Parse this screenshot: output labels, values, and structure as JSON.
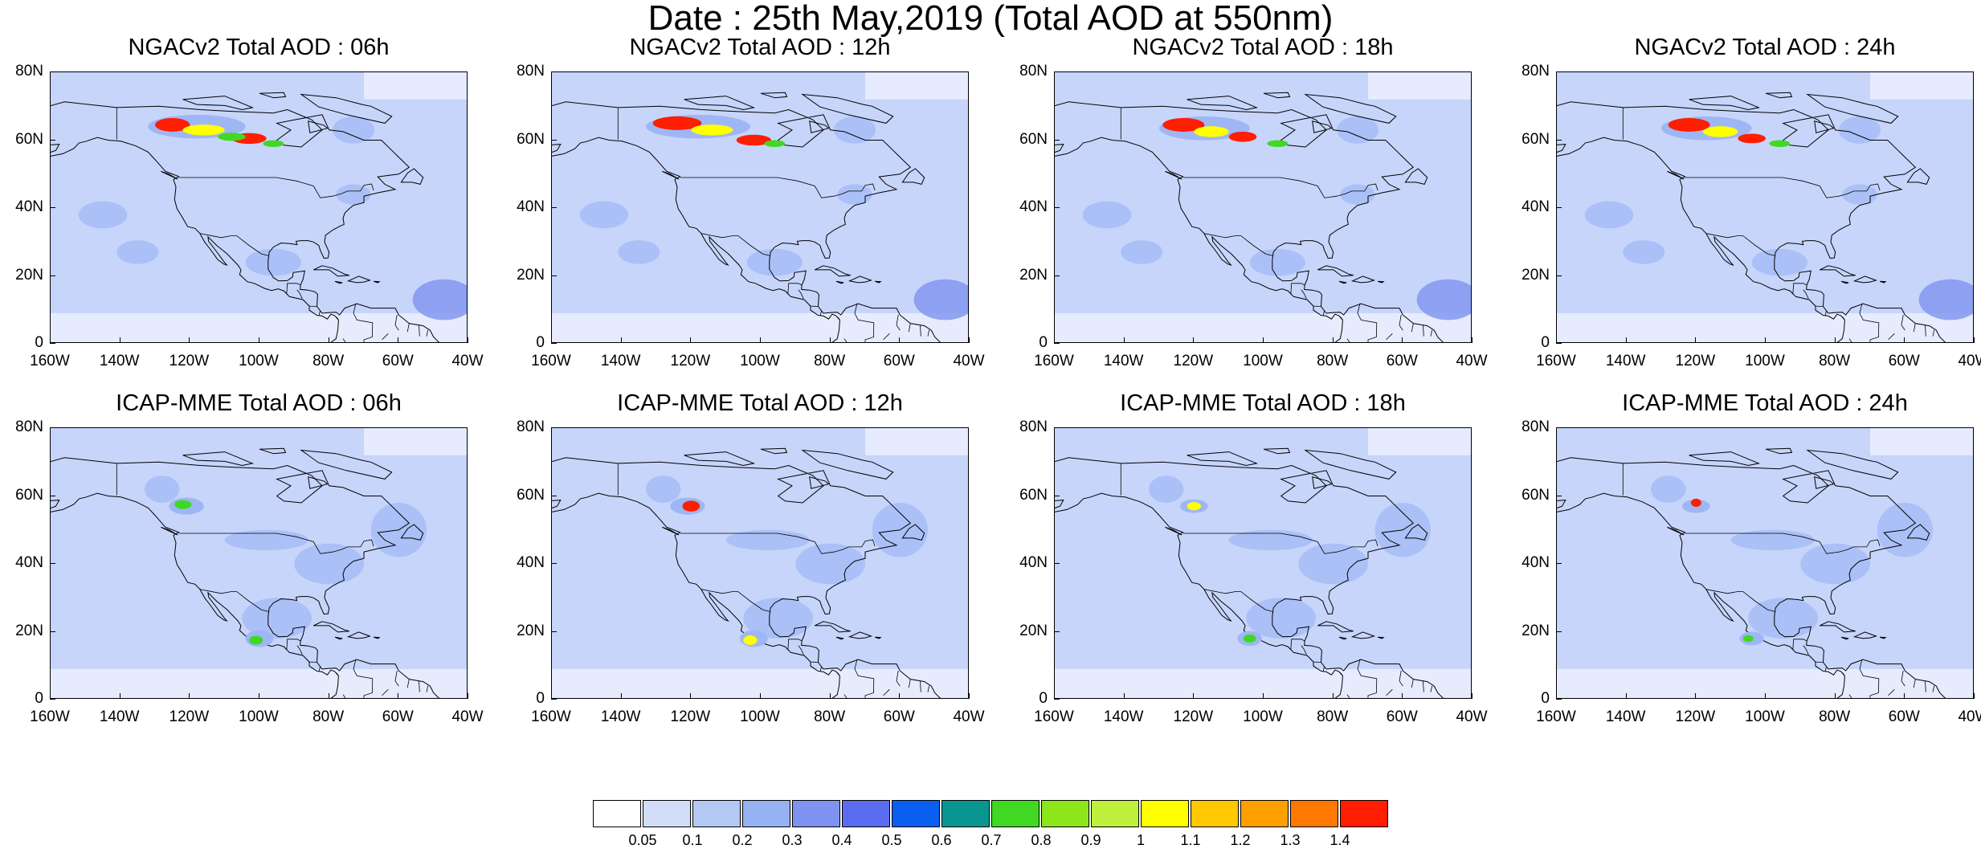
{
  "title": "Date : 25th May,2019 (Total AOD at 550nm)",
  "panels": [
    {
      "title": "NGACv2 Total AOD : 06h",
      "model": "ngac",
      "hour": "06h"
    },
    {
      "title": "NGACv2 Total AOD : 12h",
      "model": "ngac",
      "hour": "12h"
    },
    {
      "title": "NGACv2 Total AOD : 18h",
      "model": "ngac",
      "hour": "18h"
    },
    {
      "title": "NGACv2 Total AOD : 24h",
      "model": "ngac",
      "hour": "24h"
    },
    {
      "title": "ICAP-MME Total AOD : 06h",
      "model": "icap",
      "hour": "06h"
    },
    {
      "title": "ICAP-MME Total AOD : 12h",
      "model": "icap",
      "hour": "12h"
    },
    {
      "title": "ICAP-MME Total AOD : 18h",
      "model": "icap",
      "hour": "18h"
    },
    {
      "title": "ICAP-MME Total AOD : 24h",
      "model": "icap",
      "hour": "24h"
    }
  ],
  "axes": {
    "lat_labels": [
      "80N",
      "60N",
      "40N",
      "20N",
      "0"
    ],
    "lon_labels": [
      "160W",
      "140W",
      "120W",
      "100W",
      "80W",
      "60W",
      "40W"
    ],
    "lat_range": [
      0,
      80
    ],
    "lon_range": [
      -160,
      -40
    ]
  },
  "colorbar": {
    "labels": [
      "0.05",
      "0.1",
      "0.2",
      "0.3",
      "0.4",
      "0.5",
      "0.6",
      "0.7",
      "0.8",
      "0.9",
      "1",
      "1.1",
      "1.2",
      "1.3",
      "1.4"
    ],
    "colors": [
      "#ffffff",
      "#d2def8",
      "#b4c8f4",
      "#96b2f2",
      "#7e92f0",
      "#5b6cf0",
      "#0a5ff0",
      "#0a9690",
      "#41d823",
      "#8ce619",
      "#bef03c",
      "#ffff00",
      "#ffc800",
      "#ffa000",
      "#ff7800",
      "#ff1e00"
    ]
  },
  "colors": {
    "background_aod": "#c7d5fb",
    "moderate_aod": "#9fb6f5",
    "smoke_red": "#ff1e00",
    "smoke_yellow": "#ffff00",
    "smoke_green": "#41d823",
    "coastline": "#000000"
  }
}
